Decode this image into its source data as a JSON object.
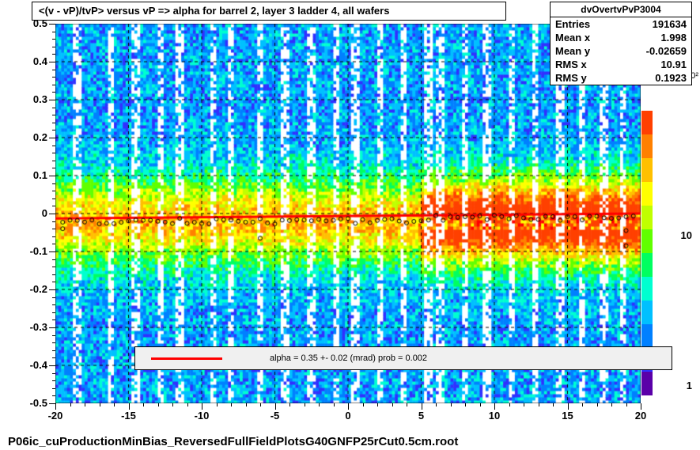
{
  "title": "<(v - vP)/tvP> versus   vP => alpha for barrel 2, layer 3 ladder 4, all wafers",
  "footer": "P06ic_cuProductionMinBias_ReversedFullFieldPlotsG40GNFP25rCut0.5cm.root",
  "stats": {
    "name": "dvOvertvPvP3004",
    "entries": "191634",
    "meanx": "1.998",
    "meany": "-0.02659",
    "rmsx": "10.91",
    "rmsy": "0.1923"
  },
  "legend": {
    "text": "alpha =    0.35 +-  0.02 (mrad) prob = 0.002"
  },
  "overflow": "0²",
  "chart": {
    "type": "heatmap-scatter",
    "xlim": [
      -20,
      20
    ],
    "ylim": [
      -0.5,
      0.5
    ],
    "xticks": [
      -20,
      -15,
      -10,
      -5,
      0,
      5,
      10,
      15,
      20
    ],
    "yticks": [
      -0.5,
      -0.4,
      -0.3,
      -0.2,
      -0.1,
      0,
      0.1,
      0.2,
      0.3,
      0.4,
      0.5
    ],
    "x_minor_step": 1,
    "y_minor_step": 0.02,
    "grid_x": [
      -15,
      -10,
      -5,
      0,
      5,
      10,
      15
    ],
    "grid_y": [
      -0.4,
      -0.3,
      -0.2,
      -0.1,
      0,
      0.1,
      0.2,
      0.3,
      0.4
    ],
    "grid_color": "#000000",
    "background_color": "#ffffff",
    "fit_line": {
      "color": "#ff0000",
      "y_at_xmin": -0.013,
      "y_at_xmax": 0.0,
      "width": 3
    },
    "marker_style": "open-circle",
    "marker_size": 5,
    "marker_color": "#000000",
    "scatter_y_base": -0.02,
    "colorbar": {
      "scale": "log",
      "ticks": [
        1,
        10
      ],
      "colors": [
        "#5a00a8",
        "#3030ff",
        "#0080ff",
        "#00c0ff",
        "#00ffd0",
        "#00ff60",
        "#60ff00",
        "#c0ff00",
        "#ffff00",
        "#ffc000",
        "#ff8000",
        "#ff4000"
      ],
      "hot_colors": [
        "#ffff00",
        "#ffc000",
        "#ff8000",
        "#ff0000"
      ]
    },
    "heatmap_bg": "#00d080",
    "white_stripe_x": [
      -18.5,
      -16.2,
      -14.5,
      -12.8,
      -11.5,
      -9.2,
      -8.0,
      -6.0,
      -4.3,
      -2.5,
      -0.8,
      0.5,
      2.2,
      3.8,
      5.5,
      6.3,
      8.0,
      9.5,
      11.2,
      12.8,
      14.5,
      16.0,
      17.5,
      18.8
    ]
  }
}
